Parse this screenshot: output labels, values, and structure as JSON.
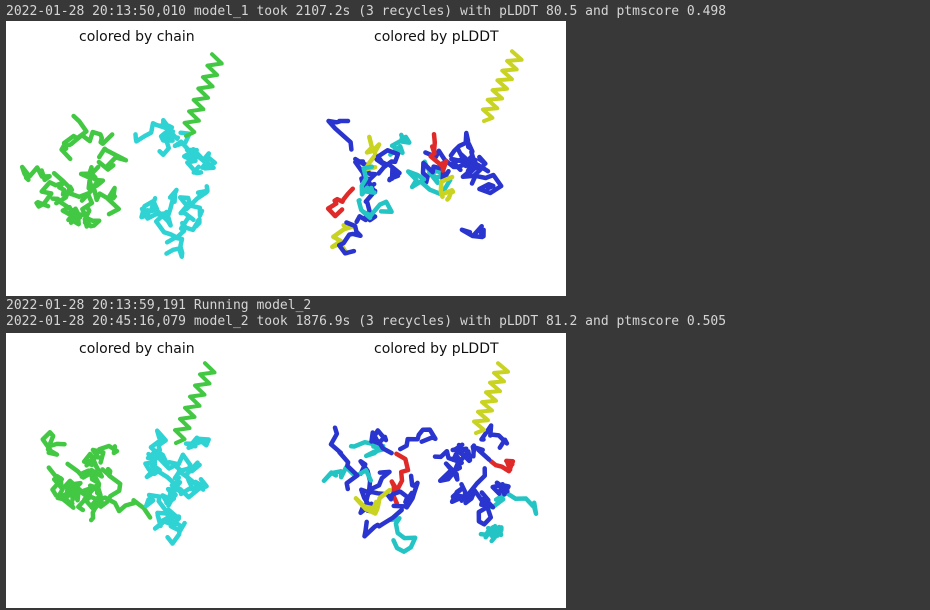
{
  "log": {
    "line1": "2022-01-28 20:13:50,010 model_1 took 2107.2s (3 recycles) with pLDDT 80.5 and ptmscore 0.498",
    "line2": "2022-01-28 20:13:59,191 Running model_2",
    "line3": "2022-01-28 20:45:16,079 model_2 took 1876.9s (3 recycles) with pLDDT 81.2 and ptmscore 0.505"
  },
  "figures": [
    {
      "model": "model_1",
      "chain_title": "colored by chain",
      "plddt_title": "colored by pLDDT"
    },
    {
      "model": "model_2",
      "chain_title": "colored by chain",
      "plddt_title": "colored by pLDDT"
    }
  ],
  "colors": {
    "background": "#383838",
    "log_text": "#d5d5d5",
    "chain_a": "#43c843",
    "chain_b": "#2fd3d3",
    "plddt_high": "#2a35d0",
    "plddt_mid": "#25c4c4",
    "plddt_low": "#e02a2a",
    "plddt_medium_low": "#c9d321"
  }
}
